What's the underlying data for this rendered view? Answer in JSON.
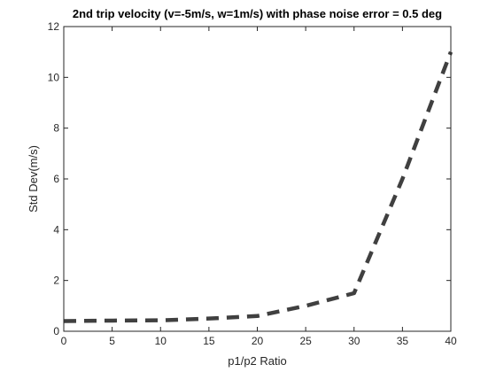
{
  "chart_data": {
    "type": "line",
    "title": "2nd trip velocity (v=-5m/s, w=1m/s) with phase noise error = 0.5 deg",
    "xlabel": "p1/p2 Ratio",
    "ylabel": "Std Dev(m/s)",
    "xlim": [
      0,
      40
    ],
    "ylim": [
      0,
      12
    ],
    "xticks": [
      0,
      5,
      10,
      15,
      20,
      25,
      30,
      35,
      40
    ],
    "yticks": [
      0,
      2,
      4,
      6,
      8,
      10,
      12
    ],
    "xtick_labels": [
      "0",
      "5",
      "10",
      "15",
      "20",
      "25",
      "30",
      "35",
      "40"
    ],
    "ytick_labels": [
      "0",
      "2",
      "4",
      "6",
      "8",
      "10",
      "12"
    ],
    "grid": false,
    "legend": "none",
    "series": [
      {
        "line_style": "dashed",
        "color": "#404040",
        "x": [
          0,
          5,
          10,
          15,
          20,
          25,
          30,
          35,
          40
        ],
        "y": [
          0.4,
          0.42,
          0.43,
          0.5,
          0.6,
          1.0,
          1.5,
          6.0,
          11.0
        ]
      }
    ]
  }
}
